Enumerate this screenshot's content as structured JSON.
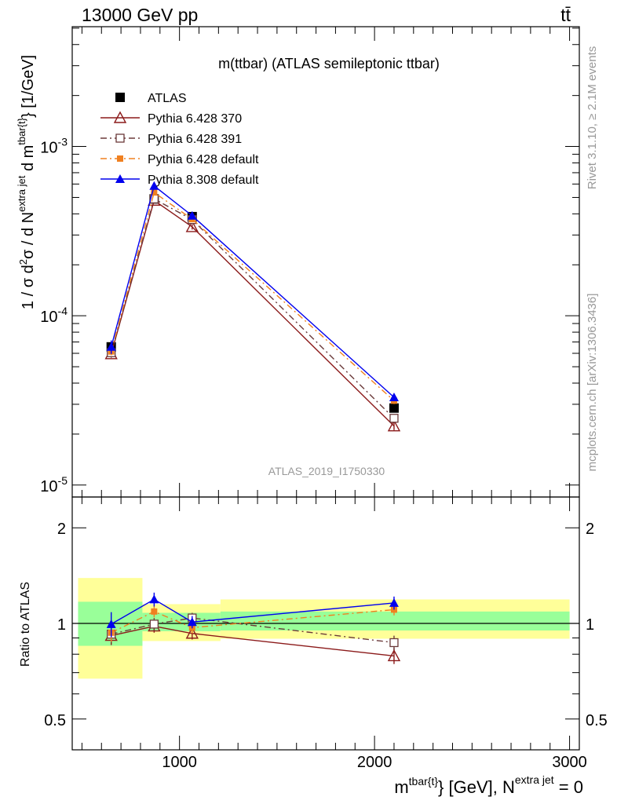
{
  "header": {
    "energy_label": "13000 GeV pp",
    "process_label": "tt̄"
  },
  "side_labels": {
    "rivet": "Rivet 3.1.10, ≥ 2.1M events",
    "mcplots": "mcplots.cern.ch [arXiv:1306.3436]"
  },
  "chart_data": [
    {
      "type": "line",
      "title": "m(ttbar) (ATLAS semileptonic ttbar)",
      "watermark": "ATLAS_2019_I1750330",
      "ylabel": "1 / σ d²σ / d N^{extra jet} d m^{tbar{t}} [1/GeV]",
      "yscale": "log",
      "ylim": [
        8.5e-06,
        0.0051
      ],
      "xlim": [
        450,
        3050
      ],
      "ytick_labels": [
        "10^{-5}",
        "10^{-4}",
        "10^{-3}"
      ],
      "legend_position": "top-left",
      "x": [
        650,
        870,
        1065,
        2100
      ],
      "series": [
        {
          "name": "ATLAS",
          "color": "#000000",
          "marker": "filled-square",
          "values": [
            6.55e-05,
            0.00049,
            0.000385,
            2.85e-05
          ],
          "errors": [
            4e-06,
            2e-05,
            1.4e-05,
            1.3e-06
          ]
        },
        {
          "name": "Pythia 6.428 370",
          "color": "#8b1a1a",
          "marker": "open-triangle",
          "line": "solid",
          "values": [
            5.95e-05,
            0.00048,
            0.000335,
            2.23e-05
          ],
          "errors": [
            3e-06,
            2e-05,
            1.2e-05,
            1.2e-06
          ]
        },
        {
          "name": "Pythia 6.428 391",
          "color": "#6b3a3a",
          "marker": "open-square",
          "line": "dashdot",
          "values": [
            6.05e-05,
            0.00049,
            0.00037,
            2.48e-05
          ],
          "errors": [
            3e-06,
            2e-05,
            1.2e-05,
            1.2e-06
          ]
        },
        {
          "name": "Pythia 6.428 default",
          "color": "#f08020",
          "marker": "filled-square-small",
          "line": "dashdot",
          "values": [
            6.15e-05,
            0.000535,
            0.000372,
            3.15e-05
          ],
          "errors": [
            3e-06,
            2e-05,
            1.2e-05,
            1.4e-06
          ]
        },
        {
          "name": "Pythia 8.308 default",
          "color": "#0000ee",
          "marker": "filled-triangle",
          "line": "solid",
          "values": [
            6.55e-05,
            0.000585,
            0.00039,
            3.3e-05
          ],
          "errors": [
            6e-06,
            2.5e-05,
            1.4e-05,
            1.6e-06
          ]
        }
      ]
    },
    {
      "type": "line",
      "ylabel": "Ratio to ATLAS",
      "xlabel": "m^{tbar{t}} [GeV], N^{extra jet} = 0",
      "yscale": "log",
      "ylim": [
        0.4,
        2.5
      ],
      "xlim": [
        450,
        3050
      ],
      "ytick_labels": [
        "0.5",
        "1",
        "2"
      ],
      "xtick_labels": [
        "1000",
        "2000",
        "3000"
      ],
      "reference_line": 1,
      "bands": [
        {
          "x_range": [
            480,
            810
          ],
          "inner": [
            0.85,
            1.17
          ],
          "outer": [
            0.67,
            1.39
          ]
        },
        {
          "x_range": [
            810,
            1210
          ],
          "inner": [
            0.945,
            1.08
          ],
          "outer": [
            0.88,
            1.15
          ]
        },
        {
          "x_range": [
            1210,
            3000
          ],
          "inner": [
            0.95,
            1.09
          ],
          "outer": [
            0.895,
            1.19
          ]
        }
      ],
      "x": [
        650,
        870,
        1065,
        2100
      ],
      "series": [
        {
          "name": "Pythia 6.428 370",
          "color": "#8b1a1a",
          "marker": "open-triangle",
          "line": "solid",
          "values": [
            0.915,
            0.98,
            0.93,
            0.79
          ],
          "errors": [
            0.06,
            0.045,
            0.04,
            0.045
          ]
        },
        {
          "name": "Pythia 6.428 391",
          "color": "#6b3a3a",
          "marker": "open-square",
          "line": "dashdot",
          "values": [
            0.925,
            0.995,
            1.04,
            0.87
          ],
          "errors": [
            0.06,
            0.045,
            0.04,
            0.045
          ]
        },
        {
          "name": "Pythia 6.428 default",
          "color": "#f08020",
          "marker": "filled-square-small",
          "line": "dashdot",
          "values": [
            0.935,
            1.09,
            0.97,
            1.105
          ],
          "errors": [
            0.06,
            0.045,
            0.04,
            0.045
          ]
        },
        {
          "name": "Pythia 8.308 default",
          "color": "#0000ee",
          "marker": "filled-triangle",
          "line": "solid",
          "values": [
            0.995,
            1.19,
            1.01,
            1.16
          ],
          "errors": [
            0.09,
            0.06,
            0.045,
            0.055
          ]
        }
      ]
    }
  ]
}
